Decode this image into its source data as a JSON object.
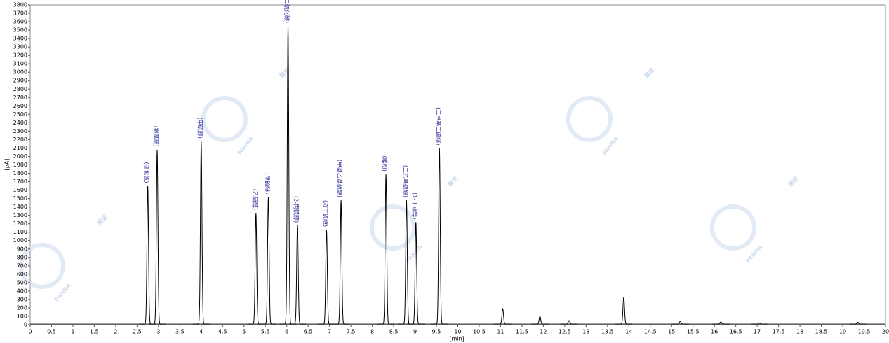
{
  "chart_data": {
    "type": "chromatogram",
    "x_label": "[min]",
    "y_label": "[pA]",
    "xlim": [
      0,
      20
    ],
    "ylim": [
      0,
      3800
    ],
    "xticks": [
      0,
      0.5,
      1,
      1.5,
      2,
      2.5,
      3,
      3.5,
      4,
      4.5,
      5,
      5.5,
      6,
      6.5,
      7,
      7.5,
      8,
      8.5,
      9,
      9.5,
      10,
      10.5,
      11,
      11.5,
      12,
      12.5,
      13,
      13.5,
      14,
      14.5,
      15,
      15.5,
      16,
      16.5,
      17,
      17.5,
      18,
      18.5,
      19,
      19.5,
      20
    ],
    "yticks": [
      0,
      100,
      200,
      300,
      400,
      500,
      600,
      700,
      800,
      900,
      1000,
      1100,
      1200,
      1300,
      1400,
      1500,
      1600,
      1700,
      1800,
      1900,
      2000,
      2100,
      2200,
      2300,
      2400,
      2500,
      2600,
      2700,
      2800,
      2900,
      3000,
      3100,
      3200,
      3300,
      3400,
      3500,
      3600,
      3700,
      3800
    ],
    "color": "#000000",
    "label_color": "#2a2a9a",
    "peaks": [
      {
        "x": 2.75,
        "y": 1650,
        "label": "(硫化氢)"
      },
      {
        "x": 2.97,
        "y": 2080,
        "label": "(羰基硫)"
      },
      {
        "x": 4.0,
        "y": 2180,
        "label": "(甲硫醇)"
      },
      {
        "x": 5.28,
        "y": 1330,
        "label": "(乙硫醇)"
      },
      {
        "x": 5.57,
        "y": 1520,
        "label": "(甲硫醚)"
      },
      {
        "x": 6.03,
        "y": 3550,
        "label": "(二硫化碳)"
      },
      {
        "x": 6.25,
        "y": 1180,
        "label": "(2-丙硫醇)"
      },
      {
        "x": 6.93,
        "y": 1130,
        "label": "(叔丁硫醇)"
      },
      {
        "x": 7.27,
        "y": 1480,
        "label": "(甲基乙基硫醚)"
      },
      {
        "x": 8.32,
        "y": 1790,
        "label": "(噻吩)"
      },
      {
        "x": 8.8,
        "y": 1480,
        "label": "(二乙基硫醚)"
      },
      {
        "x": 9.02,
        "y": 1220,
        "label": "(1-丁硫醇)"
      },
      {
        "x": 9.57,
        "y": 2100,
        "label": "(二甲基二硫醚)"
      },
      {
        "x": 11.05,
        "y": 190
      },
      {
        "x": 11.92,
        "y": 100
      },
      {
        "x": 12.6,
        "y": 50
      },
      {
        "x": 13.88,
        "y": 330
      },
      {
        "x": 15.2,
        "y": 40
      },
      {
        "x": 16.15,
        "y": 35
      },
      {
        "x": 17.05,
        "y": 20
      },
      {
        "x": 19.35,
        "y": 30
      }
    ],
    "watermark": {
      "brand": "磐诺",
      "name": "PANNA"
    }
  }
}
